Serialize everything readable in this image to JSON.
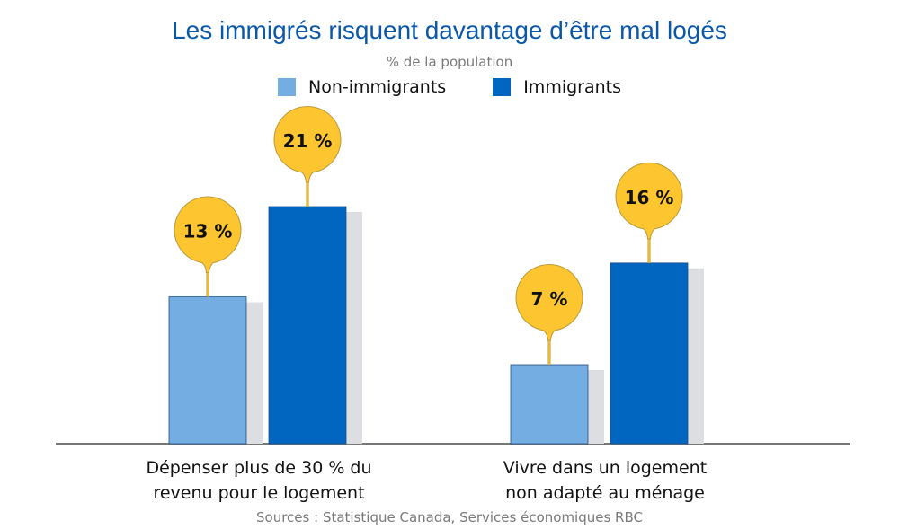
{
  "chart_data": {
    "type": "bar",
    "title": "Les immigrés risquent davantage d’être mal logés",
    "subtitle": "% de la population",
    "xlabel": "",
    "ylabel": "% de la population",
    "ylim": [
      0,
      21
    ],
    "grid": false,
    "legend_position": "top-center",
    "categories": [
      [
        "Dépenser plus de 30 % du",
        "revenu pour le logement"
      ],
      [
        "Vivre dans un logement",
        "non adapté au ménage"
      ]
    ],
    "series": [
      {
        "name": "Non-immigrants",
        "color": "#74ade2",
        "values": [
          13,
          7
        ],
        "labels": [
          "13 %",
          "7 %"
        ]
      },
      {
        "name": "Immigrants",
        "color": "#0066c0",
        "values": [
          21,
          16
        ],
        "labels": [
          "21 %",
          "16 %"
        ]
      }
    ],
    "source": "Sources : Statistique Canada, Services économiques RBC"
  },
  "colors": {
    "title": "#0b57a8",
    "bubble": "#fdc52f",
    "bubble_stroke": "#b79a3a",
    "shadow": "#dcdee1",
    "axis": "#777777"
  }
}
